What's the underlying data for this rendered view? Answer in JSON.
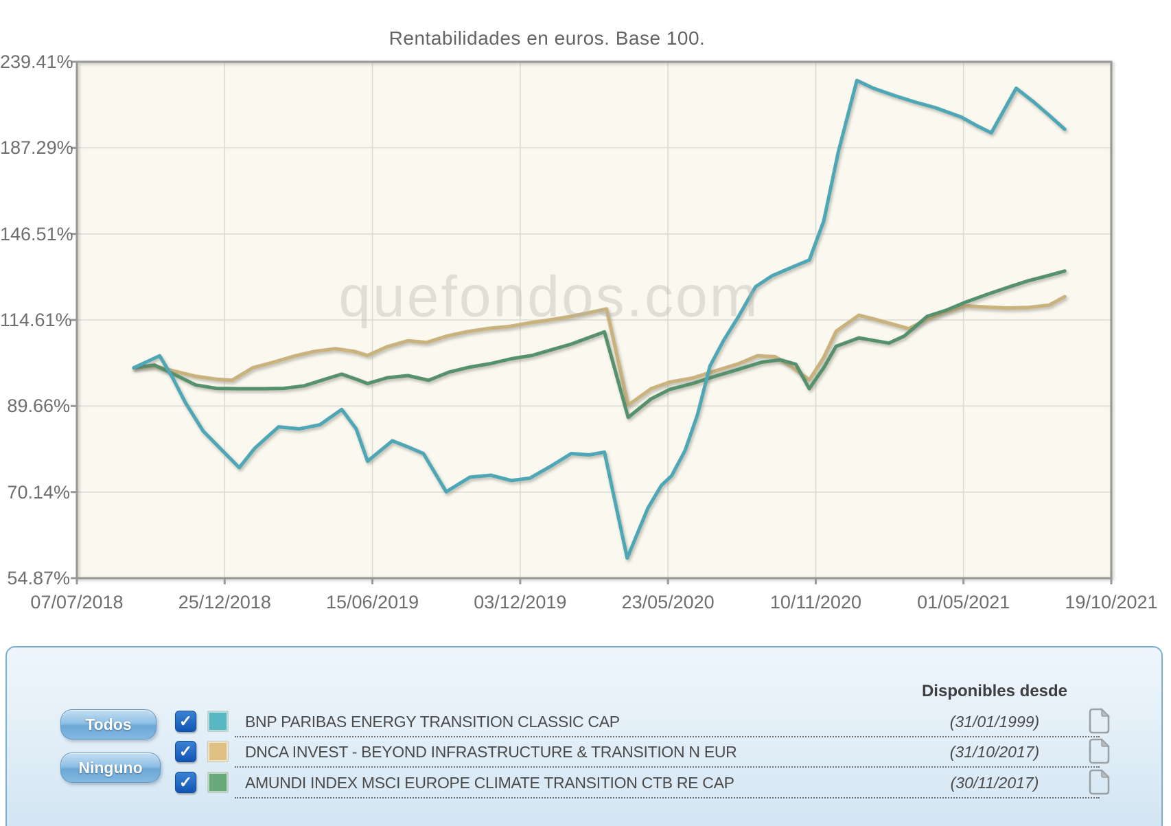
{
  "title": "Rentabilidades en euros. Base 100.",
  "watermark": "quefondos.com",
  "chart_data": {
    "type": "line",
    "title": "Rentabilidades en euros. Base 100.",
    "base": 100,
    "grid": true,
    "y_scale": "log",
    "y_unit": "%",
    "y_ticks": [
      "239.41%",
      "187.29%",
      "146.51%",
      "114.61%",
      "89.66%",
      "70.14%",
      "54.87%"
    ],
    "y_tick_values": [
      239.41,
      187.29,
      146.51,
      114.61,
      89.66,
      70.14,
      54.87
    ],
    "x_ticks": [
      "07/07/2018",
      "25/12/2018",
      "15/06/2019",
      "03/12/2019",
      "23/05/2020",
      "10/11/2020",
      "01/05/2021",
      "19/10/2021"
    ],
    "x_format": "fraction_of_axis_0_to_1",
    "series": [
      {
        "name": "DNCA INVEST - BEYOND INFRASTRUCTURE & TRANSITION N EUR",
        "color": "#c9b27c",
        "points": [
          [
            0.055,
            100
          ],
          [
            0.075,
            100.5
          ],
          [
            0.095,
            99.0
          ],
          [
            0.115,
            97.6
          ],
          [
            0.135,
            96.8
          ],
          [
            0.15,
            96.5
          ],
          [
            0.17,
            100.0
          ],
          [
            0.19,
            101.6
          ],
          [
            0.21,
            103.4
          ],
          [
            0.23,
            104.8
          ],
          [
            0.25,
            105.6
          ],
          [
            0.268,
            104.8
          ],
          [
            0.281,
            103.6
          ],
          [
            0.3,
            106.2
          ],
          [
            0.32,
            108.0
          ],
          [
            0.338,
            107.5
          ],
          [
            0.358,
            109.5
          ],
          [
            0.378,
            110.9
          ],
          [
            0.398,
            111.9
          ],
          [
            0.418,
            112.5
          ],
          [
            0.438,
            113.7
          ],
          [
            0.458,
            114.7
          ],
          [
            0.478,
            115.8
          ],
          [
            0.495,
            117.0
          ],
          [
            0.512,
            118.3
          ],
          [
            0.533,
            89.9
          ],
          [
            0.555,
            94.2
          ],
          [
            0.573,
            96.0
          ],
          [
            0.595,
            97.1
          ],
          [
            0.617,
            99.1
          ],
          [
            0.64,
            101.2
          ],
          [
            0.658,
            103.5
          ],
          [
            0.675,
            103.2
          ],
          [
            0.69,
            100.5
          ],
          [
            0.708,
            96.6
          ],
          [
            0.722,
            103.0
          ],
          [
            0.734,
            111.0
          ],
          [
            0.756,
            116.2
          ],
          [
            0.772,
            114.8
          ],
          [
            0.787,
            113.4
          ],
          [
            0.804,
            111.8
          ],
          [
            0.822,
            114.9
          ],
          [
            0.84,
            117.3
          ],
          [
            0.86,
            119.3
          ],
          [
            0.88,
            118.9
          ],
          [
            0.9,
            118.6
          ],
          [
            0.92,
            118.8
          ],
          [
            0.94,
            119.6
          ],
          [
            0.955,
            122.5
          ]
        ]
      },
      {
        "name": "AMUNDI INDEX MSCI EUROPE CLIMATE TRANSITION CTB RE CAP",
        "color": "#55916c",
        "points": [
          [
            0.055,
            100
          ],
          [
            0.075,
            100.8
          ],
          [
            0.095,
            98.0
          ],
          [
            0.115,
            95.2
          ],
          [
            0.135,
            94.3
          ],
          [
            0.157,
            94.2
          ],
          [
            0.18,
            94.2
          ],
          [
            0.2,
            94.3
          ],
          [
            0.22,
            95.0
          ],
          [
            0.24,
            96.8
          ],
          [
            0.256,
            98.2
          ],
          [
            0.27,
            96.8
          ],
          [
            0.281,
            95.6
          ],
          [
            0.3,
            97.2
          ],
          [
            0.32,
            97.8
          ],
          [
            0.34,
            96.5
          ],
          [
            0.36,
            98.8
          ],
          [
            0.38,
            100.2
          ],
          [
            0.4,
            101.2
          ],
          [
            0.42,
            102.6
          ],
          [
            0.44,
            103.6
          ],
          [
            0.458,
            105.2
          ],
          [
            0.478,
            107.0
          ],
          [
            0.495,
            109.0
          ],
          [
            0.51,
            110.8
          ],
          [
            0.533,
            86.8
          ],
          [
            0.555,
            91.5
          ],
          [
            0.573,
            94.0
          ],
          [
            0.595,
            95.6
          ],
          [
            0.617,
            97.6
          ],
          [
            0.64,
            99.6
          ],
          [
            0.662,
            101.6
          ],
          [
            0.68,
            102.3
          ],
          [
            0.695,
            101.0
          ],
          [
            0.708,
            94.2
          ],
          [
            0.722,
            100.0
          ],
          [
            0.734,
            106.3
          ],
          [
            0.756,
            108.9
          ],
          [
            0.772,
            108.0
          ],
          [
            0.785,
            107.3
          ],
          [
            0.8,
            109.5
          ],
          [
            0.822,
            115.8
          ],
          [
            0.84,
            117.8
          ],
          [
            0.86,
            120.7
          ],
          [
            0.88,
            123.3
          ],
          [
            0.9,
            125.8
          ],
          [
            0.92,
            128.2
          ],
          [
            0.94,
            130.2
          ],
          [
            0.955,
            131.8
          ]
        ]
      },
      {
        "name": "BNP PARIBAS ENERGY TRANSITION CLASSIC CAP",
        "color": "#4da7b7",
        "points": [
          [
            0.055,
            100
          ],
          [
            0.08,
            103.5
          ],
          [
            0.092,
            97.5
          ],
          [
            0.105,
            90.5
          ],
          [
            0.122,
            83.5
          ],
          [
            0.157,
            75.2
          ],
          [
            0.172,
            79.5
          ],
          [
            0.195,
            84.5
          ],
          [
            0.215,
            84.0
          ],
          [
            0.235,
            85.0
          ],
          [
            0.256,
            88.8
          ],
          [
            0.27,
            84.0
          ],
          [
            0.281,
            76.6
          ],
          [
            0.305,
            81.2
          ],
          [
            0.32,
            79.8
          ],
          [
            0.335,
            78.3
          ],
          [
            0.357,
            70.2
          ],
          [
            0.38,
            73.2
          ],
          [
            0.4,
            73.6
          ],
          [
            0.42,
            72.5
          ],
          [
            0.438,
            73.0
          ],
          [
            0.458,
            75.5
          ],
          [
            0.478,
            78.3
          ],
          [
            0.495,
            78.0
          ],
          [
            0.51,
            78.6
          ],
          [
            0.532,
            58.1
          ],
          [
            0.552,
            67.0
          ],
          [
            0.565,
            71.5
          ],
          [
            0.575,
            73.5
          ],
          [
            0.588,
            79.0
          ],
          [
            0.6,
            87.5
          ],
          [
            0.612,
            100.5
          ],
          [
            0.625,
            108.0
          ],
          [
            0.64,
            116.0
          ],
          [
            0.656,
            126.0
          ],
          [
            0.672,
            130.0
          ],
          [
            0.69,
            133.0
          ],
          [
            0.708,
            136.0
          ],
          [
            0.722,
            152.0
          ],
          [
            0.736,
            185.0
          ],
          [
            0.754,
            227.0
          ],
          [
            0.77,
            222.0
          ],
          [
            0.79,
            217.5
          ],
          [
            0.81,
            213.5
          ],
          [
            0.83,
            210.0
          ],
          [
            0.855,
            204.5
          ],
          [
            0.87,
            199.5
          ],
          [
            0.884,
            195.5
          ],
          [
            0.908,
            222.0
          ],
          [
            0.925,
            213.5
          ],
          [
            0.94,
            205.5
          ],
          [
            0.955,
            197.5
          ]
        ]
      }
    ]
  },
  "legend_panel": {
    "header": "Disponibles desde",
    "buttons": {
      "all": "Todos",
      "none": "Ninguno"
    },
    "check_glyph": "✓",
    "funds": [
      {
        "label": "BNP PARIBAS ENERGY TRANSITION CLASSIC CAP",
        "available_since": "(31/01/1999)",
        "checked": true,
        "swatch": "#57b8c2"
      },
      {
        "label": "DNCA INVEST - BEYOND INFRASTRUCTURE & TRANSITION N EUR",
        "available_since": "(31/10/2017)",
        "checked": true,
        "swatch": "#dfc183"
      },
      {
        "label": "AMUNDI INDEX MSCI EUROPE CLIMATE TRANSITION CTB RE CAP",
        "available_since": "(30/11/2017)",
        "checked": true,
        "swatch": "#69a878"
      }
    ]
  }
}
